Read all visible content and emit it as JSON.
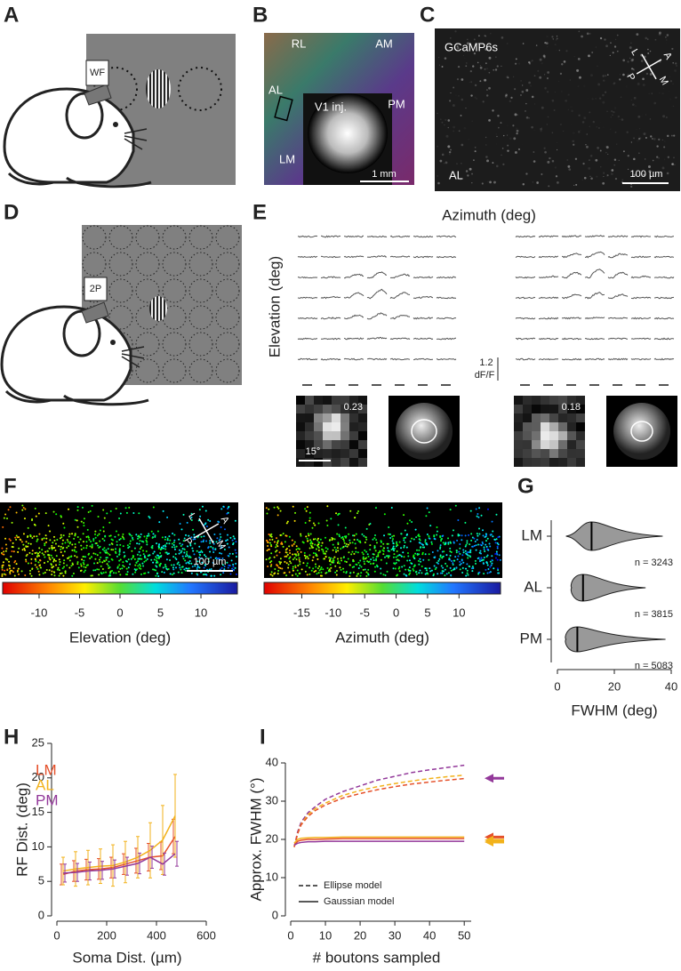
{
  "panel_a": {
    "label": "A",
    "tag": "WF"
  },
  "panel_b": {
    "label": "B",
    "areas": [
      "RL",
      "AM",
      "AL",
      "PM",
      "LM"
    ],
    "inset": "V1 inj.",
    "scale": "1 mm"
  },
  "panel_c": {
    "label": "C",
    "indicator": "GCaMP6s",
    "area": "AL",
    "scale": "100 µm",
    "compass": [
      "L",
      "A",
      "P",
      "M"
    ]
  },
  "panel_d": {
    "label": "D",
    "tag": "2P"
  },
  "panel_e": {
    "label": "E",
    "x_label": "Azimuth (deg)",
    "y_label": "Elevation (deg)",
    "scale_value": "1.2",
    "scale_unit": "dF/F",
    "maps": [
      "0.23",
      "0.18"
    ],
    "map_scale": "15°"
  },
  "panel_f": {
    "label": "F",
    "compass": [
      "L",
      "A",
      "P",
      "M"
    ],
    "scale": "100 µm",
    "colorbars": [
      {
        "label": "Elevation (deg)",
        "lim": [
          -14.5,
          14.5
        ],
        "ticks": [
          -10,
          -5,
          0,
          5,
          10
        ]
      },
      {
        "label": "Azimuth (deg)",
        "lim": [
          -21,
          16.6
        ],
        "ticks": [
          -15,
          -10,
          -5,
          0,
          5,
          10
        ]
      }
    ]
  },
  "chart_data": [
    {
      "type": "violin",
      "label": "G",
      "categories": [
        "LM",
        "AL",
        "PM"
      ],
      "medians": [
        12,
        9,
        7
      ],
      "mins": [
        3,
        5,
        3
      ],
      "maxs": [
        37,
        31,
        38
      ],
      "annotations": [
        "n = 3243",
        "n = 3815",
        "n = 5083"
      ],
      "xlabel": "FWHM (deg)",
      "xlim": [
        0,
        40
      ],
      "xticks": [
        0,
        20,
        40
      ],
      "color": "#999999"
    },
    {
      "type": "line",
      "label": "H",
      "x": [
        25,
        75,
        125,
        175,
        225,
        275,
        325,
        375,
        425,
        475
      ],
      "series": [
        {
          "name": "LM",
          "color": "#e5502a",
          "values": [
            6,
            6.5,
            6.7,
            6.8,
            7,
            7.5,
            8,
            8.5,
            8.7,
            11.5
          ],
          "errors": [
            1.5,
            1.5,
            1.5,
            1.5,
            1.5,
            1.5,
            1.8,
            2,
            2,
            2.5
          ]
        },
        {
          "name": "AL",
          "color": "#f2b21b",
          "values": [
            6.5,
            6.8,
            7,
            7.2,
            7.3,
            7.8,
            8.5,
            9.5,
            11,
            14.5
          ],
          "errors": [
            2,
            2.5,
            2.5,
            2.5,
            3,
            3,
            3,
            4,
            5,
            6
          ]
        },
        {
          "name": "PM",
          "color": "#93399a",
          "values": [
            6.2,
            6.3,
            6.5,
            6.6,
            6.8,
            7.2,
            7.6,
            8.5,
            7.5,
            9
          ],
          "errors": [
            1.3,
            1.3,
            1.3,
            1.3,
            1.3,
            1.3,
            1.5,
            1.6,
            1.6,
            1.8
          ]
        }
      ],
      "xlim": [
        0,
        600
      ],
      "xticks": [
        0,
        200,
        400,
        600
      ],
      "ylim": [
        0,
        25
      ],
      "yticks": [
        0,
        5,
        10,
        15,
        20,
        25
      ],
      "xlabel": "Soma Dist. (µm)",
      "ylabel": "RF Dist. (deg)"
    },
    {
      "type": "line",
      "label": "I",
      "x": [
        1,
        2,
        3,
        5,
        7,
        10,
        15,
        20,
        25,
        30,
        35,
        40,
        45,
        50
      ],
      "series": [
        {
          "color": "#93399a",
          "dash": true,
          "values": [
            18,
            22,
            24.5,
            27,
            28.5,
            30.5,
            32.5,
            34,
            35.5,
            36.5,
            37.5,
            38.2,
            38.8,
            39.4
          ]
        },
        {
          "color": "#f2b21b",
          "dash": true,
          "values": [
            18,
            21.5,
            24,
            26.5,
            28,
            29.5,
            31.5,
            32.8,
            33.8,
            34.6,
            35.3,
            35.9,
            36.4,
            36.8
          ]
        },
        {
          "color": "#e5502a",
          "dash": true,
          "values": [
            18,
            21.5,
            23.8,
            26,
            27.5,
            29,
            30.8,
            32,
            33,
            33.8,
            34.5,
            35,
            35.5,
            35.9
          ]
        },
        {
          "color": "#f2b21b",
          "dash": false,
          "values": [
            19,
            20,
            20.3,
            20.4,
            20.5,
            20.5,
            20.6,
            20.6,
            20.6,
            20.6,
            20.6,
            20.6,
            20.6,
            20.6
          ]
        },
        {
          "color": "#e5502a",
          "dash": false,
          "values": [
            18.5,
            19.5,
            19.8,
            20,
            20,
            20.1,
            20.2,
            20.2,
            20.2,
            20.2,
            20.2,
            20.2,
            20.2,
            20.2
          ]
        },
        {
          "color": "#93399a",
          "dash": false,
          "values": [
            18.5,
            19,
            19.2,
            19.4,
            19.4,
            19.5,
            19.5,
            19.5,
            19.5,
            19.5,
            19.5,
            19.5,
            19.5,
            19.5
          ]
        }
      ],
      "legend": [
        {
          "label": "Ellipse model",
          "dash": true
        },
        {
          "label": "Gaussian model",
          "dash": false
        }
      ],
      "arrows": [
        {
          "color": "#93399a",
          "value": 36
        },
        {
          "color": "#e5502a",
          "value": 20.6
        },
        {
          "color": "#f2b21b",
          "value": 19.8
        },
        {
          "color": "#f2b21b",
          "value": 19.3
        }
      ],
      "xlim": [
        0,
        52
      ],
      "xticks": [
        0,
        10,
        20,
        30,
        40,
        50
      ],
      "ylim": [
        0,
        40
      ],
      "yticks": [
        0,
        10,
        20,
        30,
        40
      ],
      "xlabel": "# boutons sampled",
      "ylabel": "Approx. FWHM (°)"
    }
  ]
}
